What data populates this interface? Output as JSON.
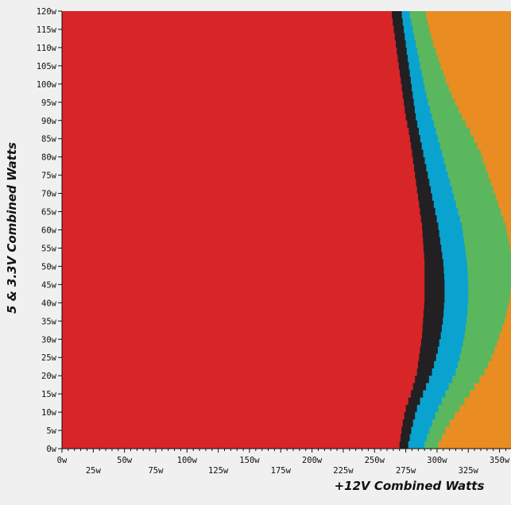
{
  "chart_data": {
    "type": "heatmap",
    "xlabel": "+12V Combined Watts",
    "ylabel": "5 & 3.3V Combined Watts",
    "xlim": [
      0,
      360
    ],
    "ylim": [
      0,
      120
    ],
    "x_ticks": [
      "0w",
      "25w",
      "50w",
      "75w",
      "100w",
      "125w",
      "150w",
      "175w",
      "200w",
      "225w",
      "250w",
      "275w",
      "300w",
      "325w",
      "350w"
    ],
    "y_ticks": [
      "0w",
      "5w",
      "10w",
      "15w",
      "20w",
      "25w",
      "30w",
      "35w",
      "40w",
      "45w",
      "50w",
      "55w",
      "60w",
      "65w",
      "70w",
      "75w",
      "80w",
      "85w",
      "90w",
      "95w",
      "100w",
      "105w",
      "110w",
      "115w",
      "120w"
    ],
    "y_levels": [
      0,
      5,
      10,
      15,
      20,
      25,
      30,
      35,
      40,
      45,
      50,
      55,
      60,
      65,
      70,
      75,
      80,
      85,
      90,
      95,
      100,
      105,
      110,
      115,
      120
    ],
    "bands": [
      {
        "color": "#d82528",
        "boundary_x": [
          270,
          272,
          275,
          280,
          284,
          286,
          288,
          289,
          290,
          290,
          290,
          289,
          288,
          286,
          284,
          282,
          280,
          278,
          275,
          273,
          271,
          269,
          267,
          265,
          263
        ]
      },
      {
        "color": "#222022",
        "boundary_x": [
          277,
          280,
          284,
          290,
          296,
          300,
          303,
          305,
          306,
          306,
          305,
          303,
          301,
          298,
          295,
          292,
          289,
          286,
          283,
          281,
          279,
          277,
          275,
          273,
          271
        ]
      },
      {
        "color": "#0aa3d0",
        "boundary_x": [
          290,
          295,
          301,
          308,
          315,
          319,
          322,
          324,
          325,
          325,
          324,
          322,
          320,
          316,
          312,
          308,
          304,
          300,
          296,
          292,
          289,
          286,
          283,
          280,
          277
        ]
      },
      {
        "color": "#5ab75e",
        "boundary_x": [
          301,
          308,
          318,
          328,
          338,
          345,
          350,
          355,
          358,
          360,
          360,
          358,
          355,
          350,
          345,
          340,
          335,
          328,
          320,
          313,
          307,
          302,
          297,
          293,
          290
        ]
      },
      {
        "color": "#e98d22",
        "boundary_x": [
          360,
          360,
          360,
          360,
          360,
          360,
          360,
          360,
          360,
          360,
          360,
          360,
          360,
          360,
          360,
          360,
          360,
          360,
          360,
          360,
          360,
          360,
          360,
          360,
          360
        ]
      }
    ]
  }
}
